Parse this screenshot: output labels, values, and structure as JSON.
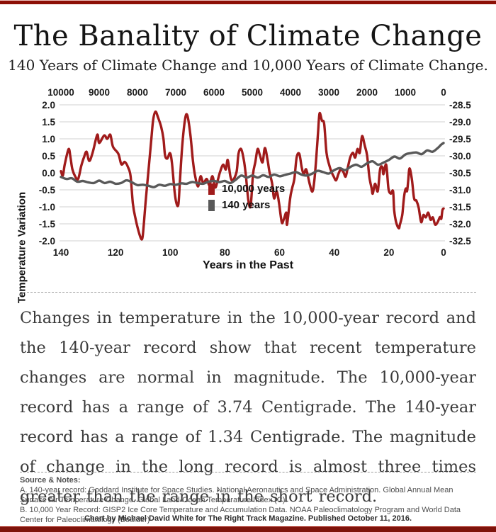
{
  "header": {
    "title": "The Banality of Climate Change",
    "subtitle": "140 Years of Climate Change and 10,000 Years of Climate Change."
  },
  "article": {
    "paragraph": "Changes in temperature in the 10,000-year record and the 140-year record show that recent temperature changes are normal in magnitude. The 10,000-year record has a range of 3.74 Centigrade. The 140-year record has a range of 1.34 Centigrade. The magnitude of change in the long record is almost three times greater than the range in the short record."
  },
  "notes": {
    "heading": "Source & Notes:",
    "lines": [
      "A. 140-year record: Goddard Institute for Space Studies. National Aeronautics and Space Administration. Global Annual Mean Surface Air Temperature Change. Global Land-Ocean Temperature Index (C).",
      "B. 10,000 Year Record: GISP2 Ice Core Temperature and Accumulation Data. NOAA Paleoclimatology Program and World Data Center for Paleoclimatology (Boulder)"
    ]
  },
  "footer": {
    "credit": "Chart by Michael David White for The Right Track Magazine. Published October 11, 2016."
  },
  "colors": {
    "accent_red": "#a01b1b",
    "series_gray": "#595959",
    "border_red": "#8d1006",
    "grid": "#d9d9d9",
    "tick_text": "#1a1a1a"
  },
  "chart_data": {
    "type": "line",
    "xlabel": "Years in the Past",
    "ylabel_left": "Temperature Variation",
    "grid": true,
    "left_ylim": [
      -2.0,
      2.0
    ],
    "right_ylim": [
      -32.5,
      -28.5
    ],
    "top_axis_ticks": [
      "10000",
      "9000",
      "8000",
      "7000",
      "6000",
      "5000",
      "4000",
      "3000",
      "2000",
      "1000",
      "0"
    ],
    "bottom_axis_ticks": [
      "140",
      "120",
      "100",
      "80",
      "60",
      "40",
      "20",
      "0"
    ],
    "left_axis_ticks": [
      "2.0",
      "1.5",
      "1.0",
      "0.5",
      "0.0",
      "-0.5",
      "-1.0",
      "-1.5",
      "-2.0"
    ],
    "right_axis_ticks": [
      "-28.5",
      "-29.0",
      "-29.5",
      "-30.0",
      "-30.5",
      "-31.0",
      "-31.5",
      "-32.0",
      "-32.5"
    ],
    "legend": [
      {
        "label": "10,000 years",
        "color": "#a01b1b"
      },
      {
        "label": "140 years",
        "color": "#595959"
      }
    ],
    "series": [
      {
        "name": "10,000 years",
        "axis": "top",
        "x_range": [
          10000,
          0
        ],
        "color": "#a01b1b",
        "points": [
          [
            10000,
            0.05
          ],
          [
            9950,
            -0.08
          ],
          [
            9900,
            0.25
          ],
          [
            9800,
            0.7
          ],
          [
            9750,
            0.45
          ],
          [
            9700,
            0.1
          ],
          [
            9620,
            -0.12
          ],
          [
            9550,
            -0.18
          ],
          [
            9470,
            0.2
          ],
          [
            9400,
            0.45
          ],
          [
            9330,
            0.62
          ],
          [
            9260,
            0.35
          ],
          [
            9170,
            0.6
          ],
          [
            9050,
            1.12
          ],
          [
            9000,
            0.88
          ],
          [
            8870,
            1.1
          ],
          [
            8790,
            1.0
          ],
          [
            8710,
            1.12
          ],
          [
            8640,
            0.77
          ],
          [
            8500,
            0.56
          ],
          [
            8420,
            0.25
          ],
          [
            8330,
            0.32
          ],
          [
            8240,
            0.15
          ],
          [
            8180,
            -0.1
          ],
          [
            8120,
            -0.9
          ],
          [
            8060,
            -1.3
          ],
          [
            7950,
            -1.8
          ],
          [
            7880,
            -1.95
          ],
          [
            7840,
            -1.6
          ],
          [
            7790,
            -0.9
          ],
          [
            7710,
            0.1
          ],
          [
            7640,
            0.95
          ],
          [
            7590,
            1.55
          ],
          [
            7530,
            1.8
          ],
          [
            7460,
            1.62
          ],
          [
            7380,
            1.35
          ],
          [
            7320,
            1.0
          ],
          [
            7280,
            0.52
          ],
          [
            7220,
            0.42
          ],
          [
            7150,
            0.58
          ],
          [
            7100,
            0.3
          ],
          [
            7030,
            -0.55
          ],
          [
            6980,
            -0.9
          ],
          [
            6930,
            -0.92
          ],
          [
            6890,
            -0.25
          ],
          [
            6830,
            0.8
          ],
          [
            6760,
            1.55
          ],
          [
            6700,
            1.7
          ],
          [
            6620,
            1.15
          ],
          [
            6550,
            0.35
          ],
          [
            6500,
            -0.05
          ],
          [
            6420,
            -0.4
          ],
          [
            6350,
            -0.1
          ],
          [
            6280,
            -0.3
          ],
          [
            6190,
            -0.18
          ],
          [
            6120,
            -0.36
          ],
          [
            6040,
            -0.1
          ],
          [
            5970,
            -0.43
          ],
          [
            5910,
            -0.25
          ],
          [
            5840,
            0.03
          ],
          [
            5760,
            0.24
          ],
          [
            5690,
            0.1
          ],
          [
            5640,
            0.38
          ],
          [
            5570,
            -0.11
          ],
          [
            5510,
            -0.22
          ],
          [
            5410,
            0.03
          ],
          [
            5360,
            0.56
          ],
          [
            5290,
            0.7
          ],
          [
            5220,
            0.38
          ],
          [
            5170,
            -0.04
          ],
          [
            5100,
            -0.82
          ],
          [
            5040,
            -0.96
          ],
          [
            4980,
            -0.04
          ],
          [
            4920,
            0.31
          ],
          [
            4860,
            0.7
          ],
          [
            4800,
            0.52
          ],
          [
            4730,
            0.31
          ],
          [
            4670,
            0.73
          ],
          [
            4600,
            0.38
          ],
          [
            4550,
            0.03
          ],
          [
            4480,
            -0.32
          ],
          [
            4430,
            -0.75
          ],
          [
            4360,
            -0.54
          ],
          [
            4300,
            -0.89
          ],
          [
            4230,
            -1.45
          ],
          [
            4180,
            -1.38
          ],
          [
            4110,
            -1.17
          ],
          [
            4090,
            -1.52
          ],
          [
            4010,
            -0.75
          ],
          [
            3960,
            -0.46
          ],
          [
            3900,
            -0.18
          ],
          [
            3840,
            0.45
          ],
          [
            3770,
            0.56
          ],
          [
            3710,
            0.17
          ],
          [
            3650,
            -0.04
          ],
          [
            3590,
            0.1
          ],
          [
            3500,
            -0.32
          ],
          [
            3430,
            -0.55
          ],
          [
            3380,
            -0.25
          ],
          [
            3330,
            0.4
          ],
          [
            3280,
            1.2
          ],
          [
            3240,
            1.75
          ],
          [
            3180,
            1.54
          ],
          [
            3120,
            1.44
          ],
          [
            3060,
            0.59
          ],
          [
            2990,
            0.24
          ],
          [
            2930,
            0.03
          ],
          [
            2870,
            -0.11
          ],
          [
            2810,
            -0.22
          ],
          [
            2750,
            -0.04
          ],
          [
            2690,
            0.1
          ],
          [
            2620,
            0.03
          ],
          [
            2560,
            -0.11
          ],
          [
            2500,
            0.17
          ],
          [
            2440,
            0.45
          ],
          [
            2370,
            0.59
          ],
          [
            2310,
            0.45
          ],
          [
            2250,
            0.7
          ],
          [
            2190,
            0.59
          ],
          [
            2130,
            1.08
          ],
          [
            2060,
            0.8
          ],
          [
            2000,
            0.52
          ],
          [
            1940,
            -0.11
          ],
          [
            1880,
            -0.46
          ],
          [
            1850,
            -0.61
          ],
          [
            1790,
            -0.32
          ],
          [
            1720,
            -0.54
          ],
          [
            1660,
            0.1
          ],
          [
            1600,
            0.17
          ],
          [
            1570,
            -0.04
          ],
          [
            1500,
            0.24
          ],
          [
            1440,
            -0.46
          ],
          [
            1380,
            -0.61
          ],
          [
            1320,
            -0.54
          ],
          [
            1290,
            -1.1
          ],
          [
            1240,
            -1.45
          ],
          [
            1170,
            -1.63
          ],
          [
            1140,
            -1.52
          ],
          [
            1080,
            -1.24
          ],
          [
            1050,
            -0.89
          ],
          [
            1020,
            -0.61
          ],
          [
            985,
            -0.46
          ],
          [
            955,
            -0.54
          ],
          [
            925,
            -0.25
          ],
          [
            890,
            0.13
          ],
          [
            830,
            -0.18
          ],
          [
            770,
            -0.75
          ],
          [
            710,
            -0.82
          ],
          [
            650,
            -1.03
          ],
          [
            585,
            -1.45
          ],
          [
            525,
            -1.24
          ],
          [
            465,
            -1.31
          ],
          [
            400,
            -1.17
          ],
          [
            340,
            -1.38
          ],
          [
            280,
            -1.31
          ],
          [
            220,
            -1.52
          ],
          [
            155,
            -1.45
          ],
          [
            95,
            -1.3
          ],
          [
            60,
            -1.35
          ],
          [
            30,
            -1.1
          ],
          [
            0,
            -1.05
          ]
        ]
      },
      {
        "name": "140 years",
        "axis": "bottom",
        "x_range": [
          140,
          0
        ],
        "color": "#595959",
        "points": [
          [
            140,
            -0.12
          ],
          [
            138,
            -0.18
          ],
          [
            136,
            -0.16
          ],
          [
            134,
            -0.26
          ],
          [
            132,
            -0.24
          ],
          [
            130,
            -0.28
          ],
          [
            128,
            -0.3
          ],
          [
            126,
            -0.23
          ],
          [
            124,
            -0.3
          ],
          [
            122,
            -0.26
          ],
          [
            120,
            -0.32
          ],
          [
            118,
            -0.3
          ],
          [
            116,
            -0.22
          ],
          [
            114,
            -0.28
          ],
          [
            112,
            -0.36
          ],
          [
            110,
            -0.35
          ],
          [
            108,
            -0.38
          ],
          [
            106,
            -0.42
          ],
          [
            104,
            -0.35
          ],
          [
            102,
            -0.38
          ],
          [
            100,
            -0.33
          ],
          [
            98,
            -0.35
          ],
          [
            96,
            -0.31
          ],
          [
            94,
            -0.32
          ],
          [
            92,
            -0.27
          ],
          [
            90,
            -0.3
          ],
          [
            88,
            -0.32
          ],
          [
            86,
            -0.26
          ],
          [
            84,
            -0.24
          ],
          [
            82,
            -0.27
          ],
          [
            80,
            -0.24
          ],
          [
            78,
            -0.3
          ],
          [
            76,
            -0.2
          ],
          [
            74,
            -0.08
          ],
          [
            72,
            -0.14
          ],
          [
            70,
            -0.08
          ],
          [
            68,
            -0.14
          ],
          [
            66,
            -0.07
          ],
          [
            64,
            -0.12
          ],
          [
            62,
            -0.05
          ],
          [
            60,
            -0.1
          ],
          [
            58,
            -0.06
          ],
          [
            56,
            -0.02
          ],
          [
            54,
            0.02
          ],
          [
            52,
            -0.05
          ],
          [
            50,
            -0.08
          ],
          [
            48,
            -0.02
          ],
          [
            46,
            0.06
          ],
          [
            44,
            0.02
          ],
          [
            42,
            -0.02
          ],
          [
            40,
            0.08
          ],
          [
            38,
            0.14
          ],
          [
            36,
            0.08
          ],
          [
            34,
            0.18
          ],
          [
            32,
            0.24
          ],
          [
            30,
            0.18
          ],
          [
            28,
            0.28
          ],
          [
            26,
            0.34
          ],
          [
            24,
            0.24
          ],
          [
            22,
            0.3
          ],
          [
            20,
            0.38
          ],
          [
            18,
            0.48
          ],
          [
            16,
            0.42
          ],
          [
            14,
            0.54
          ],
          [
            12,
            0.58
          ],
          [
            10,
            0.6
          ],
          [
            8,
            0.55
          ],
          [
            6,
            0.66
          ],
          [
            4,
            0.62
          ],
          [
            2,
            0.74
          ],
          [
            1,
            0.82
          ],
          [
            0,
            0.88
          ]
        ]
      }
    ]
  }
}
